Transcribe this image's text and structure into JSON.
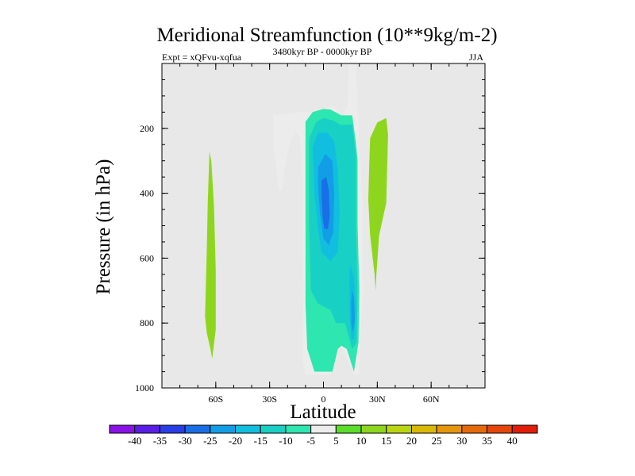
{
  "chart_data": {
    "type": "contour",
    "title": "Meridional Streamfunction (10**9kg/m-2)",
    "subtitle_left": "Expt = xQFvu-xqfua",
    "subtitle_center": "3480kyr BP - 0000kyr BP",
    "subtitle_right": "JJA",
    "xlabel": "Latitude",
    "ylabel": "Pressure (in hPa)",
    "xlim": [
      -90,
      90
    ],
    "ylim": [
      1000,
      0
    ],
    "x_ticks": [
      {
        "value": -60,
        "label": "60S"
      },
      {
        "value": -30,
        "label": "30S"
      },
      {
        "value": 0,
        "label": "0"
      },
      {
        "value": 30,
        "label": "30N"
      },
      {
        "value": 60,
        "label": "60N"
      }
    ],
    "y_ticks": [
      {
        "value": 200,
        "label": "200"
      },
      {
        "value": 400,
        "label": "400"
      },
      {
        "value": 600,
        "label": "600"
      },
      {
        "value": 800,
        "label": "800"
      },
      {
        "value": 1000,
        "label": "1000"
      }
    ],
    "levels": [
      -40,
      -35,
      -30,
      -25,
      -20,
      -15,
      -10,
      -5,
      5,
      10,
      15,
      20,
      25,
      30,
      35,
      40
    ],
    "level_labels": [
      "-40",
      "-35",
      "-30",
      "-25",
      "-20",
      "-15",
      "-10",
      "-5",
      "5",
      "10",
      "15",
      "20",
      "25",
      "30",
      "35",
      "40"
    ],
    "colors": [
      "#8a12e6",
      "#5a1ee6",
      "#2a3ee6",
      "#1a6ee6",
      "#129ee6",
      "#12bedf",
      "#18d0c4",
      "#2ee6b0",
      "#ececec",
      "#5ade28",
      "#8ed61e",
      "#bad612",
      "#dab80a",
      "#e6960a",
      "#e66a0a",
      "#e6460a",
      "#e01e0a"
    ],
    "background": "#e8e8e8",
    "regions": [
      {
        "name": "positive-south-band",
        "value": 10,
        "points": [
          [
            -63.5,
            272
          ],
          [
            -64.5,
            430
          ],
          [
            -65,
            580
          ],
          [
            -66,
            780
          ],
          [
            -65,
            830
          ],
          [
            -63,
            880
          ],
          [
            -62,
            910
          ],
          [
            -60,
            820
          ],
          [
            -60,
            640
          ],
          [
            -61,
            440
          ],
          [
            -62.5,
            300
          ]
        ]
      },
      {
        "name": "positive-north-band",
        "value": 10,
        "points": [
          [
            25.5,
            310
          ],
          [
            26,
            230
          ],
          [
            30,
            182
          ],
          [
            35,
            168
          ],
          [
            36,
            220
          ],
          [
            35,
            430
          ],
          [
            31,
            530
          ],
          [
            29.5,
            650
          ],
          [
            29,
            700
          ],
          [
            28.5,
            650
          ],
          [
            26,
            530
          ],
          [
            25,
            420
          ]
        ]
      },
      {
        "name": "neg-5-main",
        "value": -5,
        "points": [
          [
            -27,
            160
          ],
          [
            -20,
            155
          ],
          [
            -13,
            150
          ],
          [
            -7,
            150
          ],
          [
            5,
            130
          ],
          [
            11,
            162
          ],
          [
            13.5,
            128
          ],
          [
            14,
            0
          ],
          [
            18,
            0
          ],
          [
            19,
            140
          ],
          [
            19.5,
            160
          ],
          [
            20,
            250
          ],
          [
            22,
            450
          ],
          [
            22,
            700
          ],
          [
            20.5,
            850
          ],
          [
            20,
            960
          ],
          [
            17,
            960
          ],
          [
            14,
            920
          ],
          [
            11,
            880
          ],
          [
            8,
            880
          ],
          [
            6,
            920
          ],
          [
            4,
            960
          ],
          [
            -10,
            960
          ],
          [
            -12,
            900
          ],
          [
            -11,
            700
          ],
          [
            -12,
            520
          ],
          [
            -12,
            350
          ],
          [
            -13,
            230
          ],
          [
            -15,
            215
          ],
          [
            -18,
            230
          ],
          [
            -20,
            280
          ],
          [
            -22,
            330
          ],
          [
            -23,
            390
          ],
          [
            -25,
            390
          ],
          [
            -26,
            330
          ],
          [
            -28,
            260
          ],
          [
            -28,
            200
          ],
          [
            -28,
            160
          ]
        ]
      },
      {
        "name": "neg-10-core",
        "value": -10,
        "points": [
          [
            -10,
            180
          ],
          [
            -6,
            150
          ],
          [
            0,
            140
          ],
          [
            4,
            142
          ],
          [
            10,
            160
          ],
          [
            16,
            160
          ],
          [
            18,
            240
          ],
          [
            19,
            300
          ],
          [
            19,
            500
          ],
          [
            20,
            700
          ],
          [
            19.5,
            860
          ],
          [
            17,
            950
          ],
          [
            13,
            880
          ],
          [
            10,
            870
          ],
          [
            8,
            880
          ],
          [
            5,
            950
          ],
          [
            -5,
            950
          ],
          [
            -9,
            880
          ],
          [
            -10,
            740
          ],
          [
            -10,
            520
          ],
          [
            -10,
            330
          ]
        ]
      },
      {
        "name": "neg-15-core",
        "value": -15,
        "points": [
          [
            -8,
            230
          ],
          [
            -4,
            180
          ],
          [
            0,
            168
          ],
          [
            5,
            175
          ],
          [
            10,
            190
          ],
          [
            16,
            188
          ],
          [
            18,
            280
          ],
          [
            18,
            500
          ],
          [
            19,
            700
          ],
          [
            18.5,
            860
          ],
          [
            16,
            880
          ],
          [
            12,
            800
          ],
          [
            7,
            800
          ],
          [
            4,
            760
          ],
          [
            -3,
            740
          ],
          [
            -7,
            700
          ],
          [
            -8,
            500
          ],
          [
            -8,
            360
          ]
        ]
      },
      {
        "name": "neg-20-core",
        "value": -20,
        "points": [
          [
            -6,
            260
          ],
          [
            -3,
            215
          ],
          [
            2,
            212
          ],
          [
            6,
            240
          ],
          [
            8,
            330
          ],
          [
            9,
            460
          ],
          [
            8,
            580
          ],
          [
            4,
            610
          ],
          [
            -1,
            580
          ],
          [
            -3,
            510
          ],
          [
            -5,
            400
          ]
        ]
      },
      {
        "name": "neg-20-lower",
        "value": -20,
        "points": [
          [
            15,
            620
          ],
          [
            17,
            660
          ],
          [
            18,
            760
          ],
          [
            17,
            850
          ],
          [
            15.5,
            850
          ],
          [
            14.5,
            760
          ],
          [
            14.5,
            660
          ]
        ]
      },
      {
        "name": "neg-25-core",
        "value": -25,
        "points": [
          [
            -3,
            320
          ],
          [
            1,
            278
          ],
          [
            5,
            300
          ],
          [
            6,
            400
          ],
          [
            5.5,
            520
          ],
          [
            3,
            560
          ],
          [
            0,
            540
          ],
          [
            -2,
            460
          ],
          [
            -3,
            380
          ]
        ]
      },
      {
        "name": "neg-30-core",
        "value": -30,
        "points": [
          [
            -1,
            360
          ],
          [
            1.5,
            350
          ],
          [
            3,
            390
          ],
          [
            3.5,
            470
          ],
          [
            2.5,
            510
          ],
          [
            0.5,
            510
          ],
          [
            -0.5,
            470
          ],
          [
            -1,
            410
          ]
        ]
      },
      {
        "name": "neg-25-lower",
        "value": -25,
        "points": [
          [
            16,
            700
          ],
          [
            17,
            720
          ],
          [
            17.5,
            790
          ],
          [
            16.5,
            830
          ],
          [
            15.5,
            800
          ],
          [
            15.5,
            730
          ]
        ]
      }
    ]
  }
}
